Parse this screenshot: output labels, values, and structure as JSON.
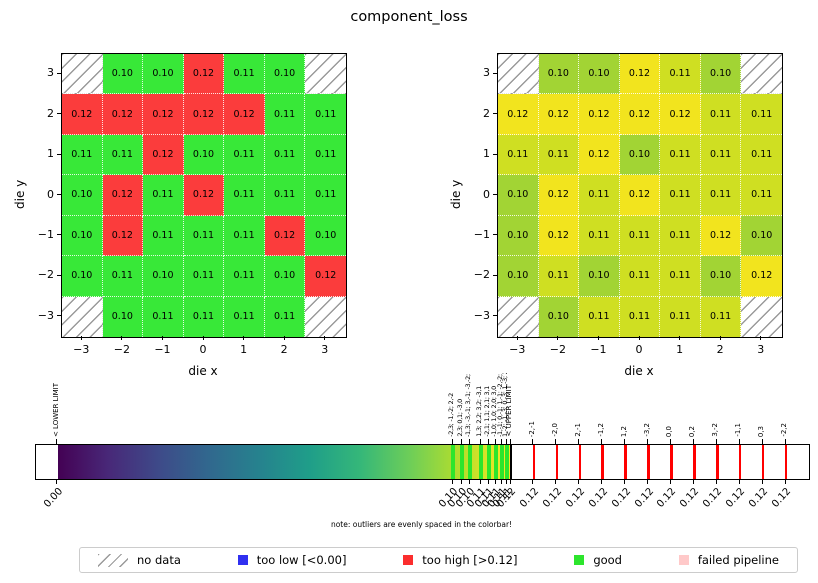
{
  "title": "component_loss",
  "axes": {
    "x_label": "die x",
    "y_label": "die y",
    "x_ticks": [
      "−3",
      "−2",
      "−1",
      "0",
      "1",
      "2",
      "3"
    ],
    "y_ticks": [
      "3",
      "2",
      "1",
      "0",
      "−1",
      "−2",
      "−3"
    ]
  },
  "wafer_rows": [
    [
      null,
      "0.10",
      "0.10",
      "0.12",
      "0.11",
      "0.10",
      null
    ],
    [
      "0.12",
      "0.12",
      "0.12",
      "0.12",
      "0.12",
      "0.11",
      "0.11"
    ],
    [
      "0.11",
      "0.11",
      "0.12",
      "0.10",
      "0.11",
      "0.11",
      "0.11"
    ],
    [
      "0.10",
      "0.12",
      "0.11",
      "0.12",
      "0.11",
      "0.11",
      "0.11"
    ],
    [
      "0.10",
      "0.12",
      "0.11",
      "0.11",
      "0.11",
      "0.12",
      "0.10"
    ],
    [
      "0.10",
      "0.11",
      "0.10",
      "0.11",
      "0.11",
      "0.10",
      "0.12"
    ],
    [
      null,
      "0.10",
      "0.11",
      "0.11",
      "0.11",
      "0.11",
      null
    ]
  ],
  "left_map": {
    "good_color": "#38e838",
    "high_color": "#fb3c3c"
  },
  "right_map": {
    "value_colors": {
      "0.10": "#a2d434",
      "0.11": "#cfdf22",
      "0.12": "#f2e41e"
    }
  },
  "colorbar": {
    "lower_limit_label": "< LOWER LIMIT",
    "upper_limit_label": "< UPPER LIMIT",
    "lower_tick_value": "0.00",
    "upper_tick_value": "0.12",
    "note": "note: outliers are evenly spaced in the colorbar!",
    "good_line_color": "#2ce52c",
    "outlier_line_color": "#ff0000",
    "viridis_stops": [
      "#440154",
      "#482878",
      "#3e4a89",
      "#31688e",
      "#26828e",
      "#1f9e89",
      "#35b779",
      "#6ece58",
      "#b5de2b",
      "#fde725"
    ],
    "cluster_ticks": [
      {
        "coords": "-2,3; -1,-2; 2,-2",
        "value": "0.10",
        "x": 417
      },
      {
        "coords": "2,3; 0,1; -3,0",
        "value": "0.10",
        "x": 426
      },
      {
        "coords": "-1,3; -3,-1; 3,-1; -3,-2; -2,-3",
        "value": "0.10",
        "x": 434
      },
      {
        "coords": "1,3; 2,2; 3,2; -3,1",
        "value": "0.11",
        "x": 445
      },
      {
        "coords": "-2,1; 1,1; 2,1; 3,1",
        "value": "0.11",
        "x": 453
      },
      {
        "coords": "-1,0; 1,0; 2,0; 3,0",
        "value": "0.11",
        "x": 460
      },
      {
        "coords": "-1,-1; 0,-1; 1,-1; -2,-2; 0,-2",
        "value": "0.11",
        "x": 466
      },
      {
        "coords": "1,-2; -1,-3; 0,-3; 1,-3; 2,-3",
        "value": "0.11",
        "x": 471
      }
    ],
    "outlier_ticks": [
      {
        "coords": "-2,-1",
        "value": "0.12"
      },
      {
        "coords": "-2,0",
        "value": "0.12"
      },
      {
        "coords": "2,-1",
        "value": "0.12"
      },
      {
        "coords": "-1,2",
        "value": "0.12"
      },
      {
        "coords": "1,2",
        "value": "0.12"
      },
      {
        "coords": "-3,2",
        "value": "0.12"
      },
      {
        "coords": "0,0",
        "value": "0.12"
      },
      {
        "coords": "0,2",
        "value": "0.12"
      },
      {
        "coords": "3,-2",
        "value": "0.12"
      },
      {
        "coords": "-1,1",
        "value": "0.12"
      },
      {
        "coords": "0,3",
        "value": "0.12"
      },
      {
        "coords": "-2,2",
        "value": "0.12"
      }
    ]
  },
  "legend": {
    "items": [
      {
        "swatch": "hatch",
        "color": "#9a9a9a",
        "label": "no data"
      },
      {
        "swatch": "square",
        "color": "#3030f0",
        "label": "too low [<0.00]"
      },
      {
        "swatch": "square",
        "color": "#fb2d2d",
        "label": "too high [>0.12]"
      },
      {
        "swatch": "square",
        "color": "#2de52d",
        "label": "good"
      },
      {
        "swatch": "square",
        "color": "#ffc9c9",
        "label": "failed pipeline"
      }
    ]
  },
  "chart_data": {
    "type": "heatmap",
    "title": "component_loss",
    "xlabel": "die x",
    "ylabel": "die y",
    "x": [
      -3,
      -2,
      -1,
      0,
      1,
      2,
      3
    ],
    "y": [
      3,
      2,
      1,
      0,
      -1,
      -2,
      -3
    ],
    "values": [
      [
        null,
        0.1,
        0.1,
        0.12,
        0.11,
        0.1,
        null
      ],
      [
        0.12,
        0.12,
        0.12,
        0.12,
        0.12,
        0.11,
        0.11
      ],
      [
        0.11,
        0.11,
        0.12,
        0.1,
        0.11,
        0.11,
        0.11
      ],
      [
        0.1,
        0.12,
        0.11,
        0.12,
        0.11,
        0.11,
        0.11
      ],
      [
        0.1,
        0.12,
        0.11,
        0.11,
        0.11,
        0.12,
        0.1
      ],
      [
        0.1,
        0.11,
        0.1,
        0.11,
        0.11,
        0.1,
        0.12
      ],
      [
        null,
        0.1,
        0.11,
        0.11,
        0.11,
        0.11,
        null
      ]
    ],
    "limits": {
      "lower": 0.0,
      "upper": 0.12
    },
    "panels": [
      "discrete status map (good/too-high/no-data)",
      "continuous viridis value map"
    ],
    "colormap": "viridis",
    "too_high_dies": [
      "-2,-1",
      "-2,0",
      "2,-1",
      "-1,2",
      "1,2",
      "-3,2",
      "0,0",
      "0,2",
      "3,-2",
      "-1,1",
      "0,3",
      "-2,2"
    ],
    "note": "note: outliers are evenly spaced in the colorbar!",
    "legend_position": "bottom"
  }
}
